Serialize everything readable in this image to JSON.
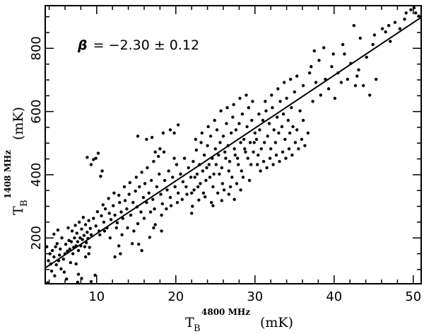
{
  "chart_data": {
    "type": "scatter",
    "xlabel": {
      "main": "T",
      "sub": "B",
      "sup": "4800 MHz",
      "unit": "(mK)"
    },
    "ylabel": {
      "main": "T",
      "sub": "B",
      "sup": "1408 MHz",
      "unit": "(mK)"
    },
    "xlim": [
      3.5,
      51
    ],
    "ylim": [
      55,
      935
    ],
    "xticks": [
      10,
      20,
      30,
      40,
      50
    ],
    "yticks": [
      200,
      400,
      600,
      800
    ],
    "xtick_labels": [
      "10",
      "20",
      "30",
      "40",
      "50"
    ],
    "ytick_labels": [
      "200",
      "400",
      "600",
      "800"
    ],
    "annotation": {
      "symbol": "β",
      "text": "= −2.30 ± 0.12"
    },
    "fit_line": {
      "x": [
        3.5,
        51
      ],
      "y": [
        105,
        898
      ]
    },
    "grid": false,
    "legend": "none",
    "points": [
      [
        3.7,
        172
      ],
      [
        3.9,
        128
      ],
      [
        4.1,
        150
      ],
      [
        4.2,
        118
      ],
      [
        4.4,
        160
      ],
      [
        4.6,
        140
      ],
      [
        4.8,
        172
      ],
      [
        4.9,
        115
      ],
      [
        5.0,
        182
      ],
      [
        5.2,
        128
      ],
      [
        5.3,
        146
      ],
      [
        5.4,
        165
      ],
      [
        5.6,
        200
      ],
      [
        5.8,
        133
      ],
      [
        6.0,
        150
      ],
      [
        6.1,
        180
      ],
      [
        6.3,
        158
      ],
      [
        6.5,
        192
      ],
      [
        6.6,
        165
      ],
      [
        6.8,
        188
      ],
      [
        6.9,
        222
      ],
      [
        7.0,
        150
      ],
      [
        7.1,
        170
      ],
      [
        7.2,
        200
      ],
      [
        7.3,
        240
      ],
      [
        7.4,
        175
      ],
      [
        7.5,
        215
      ],
      [
        7.6,
        188
      ],
      [
        7.7,
        160
      ],
      [
        7.8,
        250
      ],
      [
        7.9,
        200
      ],
      [
        8.0,
        175
      ],
      [
        8.1,
        228
      ],
      [
        8.2,
        195
      ],
      [
        8.3,
        265
      ],
      [
        8.4,
        208
      ],
      [
        8.5,
        172
      ],
      [
        8.6,
        242
      ],
      [
        8.7,
        185
      ],
      [
        8.8,
        218
      ],
      [
        8.9,
        198
      ],
      [
        9.0,
        255
      ],
      [
        9.1,
        170
      ],
      [
        9.2,
        230
      ],
      [
        9.3,
        210
      ],
      [
        4.3,
        95
      ],
      [
        4.7,
        80
      ],
      [
        3.8,
        58
      ],
      [
        6.2,
        70
      ],
      [
        5.5,
        102
      ],
      [
        7.4,
        118
      ],
      [
        5.1,
        225
      ],
      [
        6.4,
        232
      ],
      [
        4.6,
        212
      ],
      [
        7.7,
        85
      ],
      [
        9.0,
        150
      ],
      [
        8.6,
        140
      ],
      [
        9.3,
        62
      ],
      [
        6.7,
        122
      ],
      [
        5.9,
        92
      ],
      [
        8.8,
        455
      ],
      [
        9.3,
        432
      ],
      [
        9.6,
        448
      ],
      [
        10.2,
        468
      ],
      [
        10.7,
        412
      ],
      [
        9.9,
        452
      ],
      [
        10.5,
        395
      ],
      [
        7.6,
        60
      ],
      [
        8.1,
        72
      ],
      [
        9.8,
        82
      ],
      [
        9.6,
        262
      ],
      [
        9.9,
        238
      ],
      [
        10.1,
        283
      ],
      [
        10.3,
        222
      ],
      [
        10.6,
        270
      ],
      [
        10.9,
        250
      ],
      [
        11.1,
        292
      ],
      [
        11.3,
        232
      ],
      [
        11.6,
        278
      ],
      [
        11.8,
        258
      ],
      [
        12.1,
        302
      ],
      [
        12.3,
        272
      ],
      [
        12.6,
        248
      ],
      [
        12.9,
        312
      ],
      [
        13.1,
        282
      ],
      [
        13.3,
        262
      ],
      [
        13.6,
        318
      ],
      [
        13.8,
        292
      ],
      [
        14.1,
        338
      ],
      [
        14.3,
        272
      ],
      [
        14.6,
        312
      ],
      [
        14.9,
        348
      ],
      [
        15.1,
        298
      ],
      [
        15.4,
        362
      ],
      [
        15.6,
        282
      ],
      [
        15.9,
        328
      ],
      [
        16.1,
        372
      ],
      [
        16.3,
        312
      ],
      [
        16.6,
        342
      ],
      [
        16.9,
        382
      ],
      [
        17.1,
        322
      ],
      [
        17.3,
        292
      ],
      [
        17.6,
        362
      ],
      [
        17.9,
        402
      ],
      [
        18.1,
        338
      ],
      [
        18.3,
        308
      ],
      [
        18.6,
        382
      ],
      [
        18.9,
        352
      ],
      [
        19.1,
        412
      ],
      [
        19.3,
        328
      ],
      [
        19.6,
        392
      ],
      [
        19.9,
        362
      ],
      [
        20.1,
        432
      ],
      [
        20.3,
        342
      ],
      [
        20.6,
        402
      ],
      [
        20.9,
        378
      ],
      [
        21.1,
        452
      ],
      [
        21.3,
        362
      ],
      [
        21.6,
        422
      ],
      [
        21.9,
        392
      ],
      [
        10.4,
        210
      ],
      [
        11.0,
        222
      ],
      [
        11.7,
        200
      ],
      [
        12.5,
        232
      ],
      [
        13.2,
        210
      ],
      [
        13.9,
        232
      ],
      [
        14.7,
        222
      ],
      [
        15.2,
        245
      ],
      [
        16.0,
        262
      ],
      [
        16.8,
        282
      ],
      [
        17.4,
        242
      ],
      [
        18.2,
        272
      ],
      [
        18.8,
        292
      ],
      [
        19.4,
        302
      ],
      [
        20.2,
        312
      ],
      [
        20.8,
        322
      ],
      [
        21.4,
        338
      ],
      [
        22.0,
        342
      ],
      [
        10.8,
        305
      ],
      [
        11.5,
        325
      ],
      [
        12.2,
        342
      ],
      [
        12.8,
        335
      ],
      [
        13.5,
        362
      ],
      [
        14.2,
        375
      ],
      [
        15.0,
        392
      ],
      [
        15.7,
        408
      ],
      [
        16.4,
        422
      ],
      [
        17.2,
        442
      ],
      [
        17.8,
        458
      ],
      [
        18.5,
        472
      ],
      [
        15.2,
        522
      ],
      [
        16.3,
        512
      ],
      [
        17.0,
        518
      ],
      [
        17.4,
        472
      ],
      [
        18.0,
        482
      ],
      [
        18.4,
        532
      ],
      [
        19.3,
        542
      ],
      [
        19.8,
        532
      ],
      [
        20.3,
        558
      ],
      [
        19.8,
        452
      ],
      [
        12.8,
        175
      ],
      [
        12.3,
        140
      ],
      [
        13.0,
        150
      ],
      [
        15.3,
        180
      ],
      [
        15.7,
        160
      ],
      [
        18.2,
        222
      ],
      [
        17.2,
        232
      ],
      [
        14.5,
        182
      ],
      [
        16.7,
        202
      ],
      [
        22.0,
        278
      ],
      [
        22.2,
        442
      ],
      [
        22.4,
        392
      ],
      [
        22.6,
        478
      ],
      [
        22.8,
        362
      ],
      [
        23.0,
        432
      ],
      [
        23.2,
        502
      ],
      [
        23.4,
        412
      ],
      [
        23.6,
        462
      ],
      [
        23.8,
        382
      ],
      [
        24.0,
        492
      ],
      [
        24.2,
        432
      ],
      [
        24.4,
        522
      ],
      [
        24.6,
        452
      ],
      [
        24.8,
        402
      ],
      [
        25.0,
        482
      ],
      [
        25.2,
        542
      ],
      [
        25.4,
        462
      ],
      [
        25.6,
        502
      ],
      [
        25.8,
        422
      ],
      [
        26.0,
        522
      ],
      [
        26.2,
        472
      ],
      [
        26.4,
        562
      ],
      [
        26.6,
        492
      ],
      [
        26.8,
        442
      ],
      [
        27.0,
        532
      ],
      [
        27.2,
        582
      ],
      [
        27.4,
        482
      ],
      [
        27.6,
        542
      ],
      [
        27.8,
        452
      ],
      [
        28.0,
        562
      ],
      [
        28.2,
        502
      ],
      [
        28.4,
        592
      ],
      [
        28.6,
        512
      ],
      [
        28.8,
        472
      ],
      [
        29.0,
        552
      ],
      [
        29.2,
        612
      ],
      [
        29.4,
        502
      ],
      [
        29.6,
        572
      ],
      [
        29.8,
        472
      ],
      [
        30.0,
        532
      ],
      [
        22.3,
        352
      ],
      [
        22.7,
        402
      ],
      [
        23.1,
        372
      ],
      [
        23.5,
        342
      ],
      [
        23.9,
        422
      ],
      [
        24.3,
        392
      ],
      [
        24.7,
        362
      ],
      [
        25.1,
        432
      ],
      [
        25.5,
        402
      ],
      [
        25.9,
        372
      ],
      [
        26.3,
        452
      ],
      [
        26.7,
        412
      ],
      [
        27.1,
        392
      ],
      [
        27.5,
        462
      ],
      [
        27.9,
        432
      ],
      [
        28.3,
        412
      ],
      [
        28.7,
        482
      ],
      [
        29.1,
        452
      ],
      [
        29.5,
        432
      ],
      [
        29.9,
        502
      ],
      [
        22.5,
        512
      ],
      [
        23.3,
        532
      ],
      [
        24.1,
        552
      ],
      [
        24.9,
        572
      ],
      [
        25.7,
        602
      ],
      [
        26.5,
        612
      ],
      [
        27.3,
        622
      ],
      [
        28.1,
        642
      ],
      [
        28.9,
        652
      ],
      [
        29.7,
        632
      ],
      [
        22.1,
        300
      ],
      [
        22.9,
        320
      ],
      [
        23.7,
        330
      ],
      [
        24.5,
        312
      ],
      [
        25.3,
        342
      ],
      [
        26.1,
        352
      ],
      [
        26.9,
        362
      ],
      [
        27.7,
        372
      ],
      [
        28.5,
        392
      ],
      [
        29.3,
        382
      ],
      [
        24.7,
        302
      ],
      [
        25.8,
        318
      ],
      [
        26.7,
        338
      ],
      [
        27.4,
        322
      ],
      [
        28.2,
        352
      ],
      [
        30.2,
        512
      ],
      [
        30.4,
        462
      ],
      [
        30.6,
        542
      ],
      [
        30.8,
        482
      ],
      [
        31.0,
        572
      ],
      [
        31.2,
        502
      ],
      [
        31.4,
        602
      ],
      [
        31.6,
        522
      ],
      [
        31.8,
        562
      ],
      [
        32.0,
        482
      ],
      [
        32.2,
        612
      ],
      [
        32.4,
        542
      ],
      [
        32.6,
        502
      ],
      [
        32.8,
        582
      ],
      [
        33.0,
        532
      ],
      [
        33.2,
        632
      ],
      [
        33.4,
        552
      ],
      [
        33.6,
        592
      ],
      [
        33.8,
        512
      ],
      [
        34.0,
        642
      ],
      [
        34.2,
        572
      ],
      [
        34.4,
        532
      ],
      [
        34.6,
        612
      ],
      [
        34.8,
        552
      ],
      [
        35.0,
        662
      ],
      [
        30.3,
        432
      ],
      [
        30.7,
        412
      ],
      [
        31.1,
        442
      ],
      [
        31.5,
        422
      ],
      [
        31.9,
        452
      ],
      [
        32.3,
        432
      ],
      [
        32.7,
        462
      ],
      [
        33.1,
        442
      ],
      [
        33.5,
        472
      ],
      [
        33.9,
        452
      ],
      [
        34.3,
        482
      ],
      [
        34.7,
        462
      ],
      [
        35.1,
        502
      ],
      [
        35.5,
        482
      ],
      [
        35.9,
        512
      ],
      [
        36.3,
        492
      ],
      [
        36.7,
        532
      ],
      [
        36.1,
        572
      ],
      [
        35.7,
        602
      ],
      [
        35.3,
        542
      ],
      [
        30.5,
        592
      ],
      [
        31.3,
        632
      ],
      [
        32.1,
        652
      ],
      [
        32.9,
        672
      ],
      [
        33.7,
        692
      ],
      [
        34.5,
        702
      ],
      [
        35.3,
        712
      ],
      [
        36.1,
        682
      ],
      [
        36.9,
        722
      ],
      [
        37.7,
        692
      ],
      [
        37.1,
        742
      ],
      [
        38.1,
        762
      ],
      [
        38.9,
        702
      ],
      [
        39.7,
        742
      ],
      [
        40.5,
        722
      ],
      [
        41.3,
        782
      ],
      [
        42.1,
        752
      ],
      [
        42.9,
        712
      ],
      [
        43.7,
        682
      ],
      [
        44.5,
        652
      ],
      [
        37.5,
        792
      ],
      [
        38.7,
        802
      ],
      [
        39.9,
        782
      ],
      [
        41.1,
        812
      ],
      [
        42.5,
        872
      ],
      [
        43.3,
        832
      ],
      [
        45.1,
        842
      ],
      [
        46.1,
        862
      ],
      [
        46.9,
        872
      ],
      [
        47.7,
        882
      ],
      [
        48.3,
        862
      ],
      [
        49.1,
        912
      ],
      [
        49.7,
        922
      ],
      [
        50.3,
        912
      ],
      [
        50.7,
        902
      ],
      [
        46.5,
        852
      ],
      [
        44.9,
        812
      ],
      [
        47.1,
        822
      ],
      [
        48.9,
        892
      ],
      [
        50.1,
        928
      ],
      [
        37.3,
        632
      ],
      [
        38.3,
        652
      ],
      [
        39.3,
        672
      ],
      [
        40.1,
        642
      ],
      [
        41.7,
        702
      ],
      [
        43.1,
        732
      ],
      [
        44.1,
        772
      ],
      [
        45.3,
        702
      ],
      [
        42.7,
        682
      ],
      [
        40.9,
        692
      ]
    ]
  }
}
